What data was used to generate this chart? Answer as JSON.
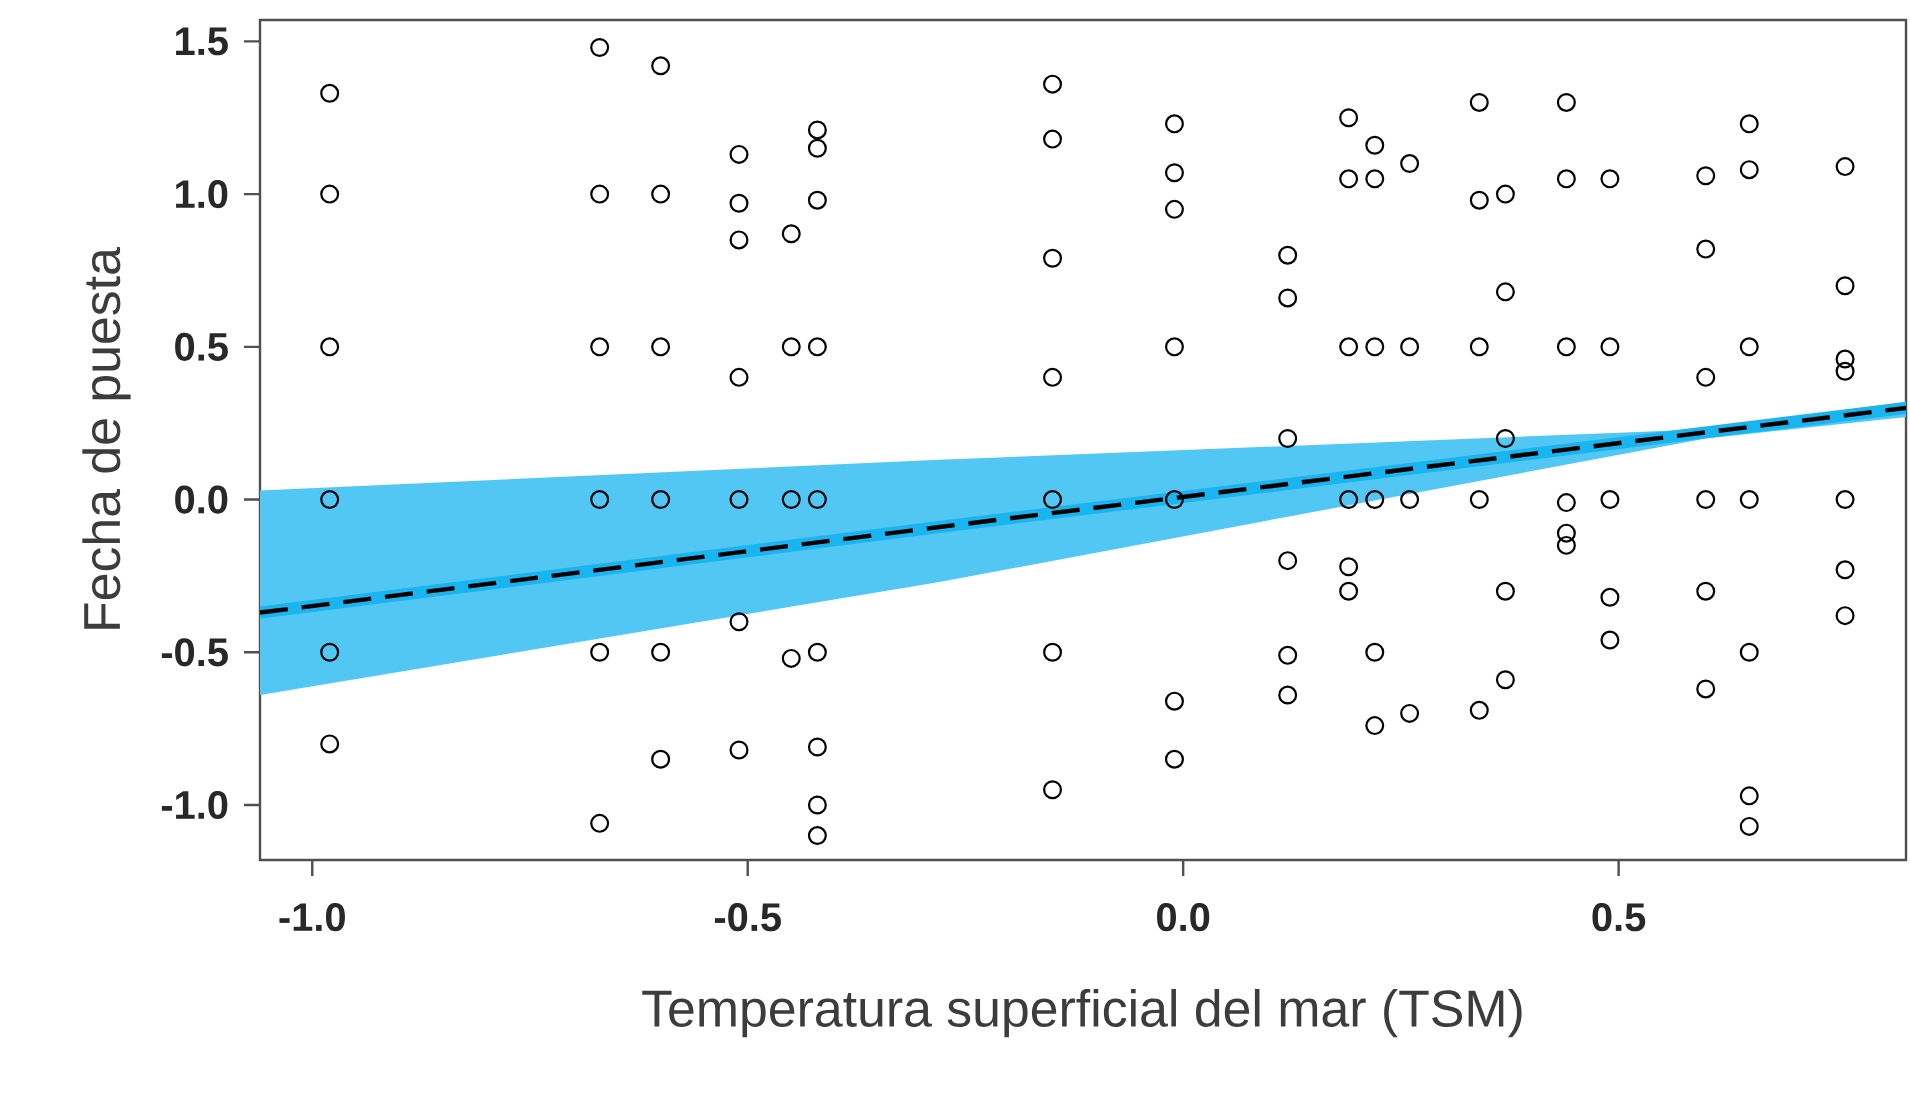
{
  "chart_data": {
    "type": "scatter",
    "xlabel": "Temperatura superficial del mar (TSM)",
    "ylabel": "Fecha de puesta",
    "xlim": [
      -1.06,
      0.83
    ],
    "ylim": [
      -1.18,
      1.57
    ],
    "xticks": [
      {
        "value": -1,
        "label": "-1.0"
      },
      {
        "value": -0.5,
        "label": "-0.5"
      },
      {
        "value": 0,
        "label": "0.0"
      },
      {
        "value": 0.5,
        "label": "0.5"
      }
    ],
    "yticks": [
      {
        "value": -1,
        "label": "-1.0"
      },
      {
        "value": -0.5,
        "label": "-0.5"
      },
      {
        "value": 0,
        "label": "0.0"
      },
      {
        "value": 0.5,
        "label": "0.5"
      },
      {
        "value": 1,
        "label": "1.0"
      },
      {
        "value": 1.5,
        "label": "1.5"
      }
    ],
    "grid": false,
    "series": [
      {
        "type": "scatter",
        "color": "#000000",
        "marker": "circle",
        "x": [
          -0.98,
          -0.98,
          -0.98,
          -0.98,
          -0.98,
          -0.98,
          -0.67,
          -0.67,
          -0.67,
          -0.67,
          -0.67,
          -0.67,
          -0.6,
          -0.6,
          -0.6,
          -0.6,
          -0.6,
          -0.6,
          -0.51,
          -0.51,
          -0.51,
          -0.51,
          -0.51,
          -0.51,
          -0.51,
          -0.45,
          -0.45,
          -0.45,
          -0.45,
          -0.42,
          -0.42,
          -0.42,
          -0.42,
          -0.42,
          -0.42,
          -0.42,
          -0.42,
          -0.42,
          -0.15,
          -0.15,
          -0.15,
          -0.15,
          -0.15,
          -0.15,
          -0.15,
          -0.01,
          -0.01,
          -0.01,
          -0.01,
          -0.01,
          -0.01,
          -0.01,
          0.12,
          0.12,
          0.12,
          0.12,
          0.12,
          0.12,
          0.19,
          0.19,
          0.19,
          0.19,
          0.19,
          0.19,
          0.22,
          0.22,
          0.22,
          0.22,
          0.22,
          0.22,
          0.26,
          0.26,
          0.26,
          0.26,
          0.34,
          0.34,
          0.34,
          0.34,
          0.34,
          0.37,
          0.37,
          0.37,
          0.37,
          0.37,
          0.44,
          0.44,
          0.44,
          0.44,
          0.44,
          0.44,
          0.49,
          0.49,
          0.49,
          0.49,
          0.49,
          0.6,
          0.6,
          0.6,
          0.6,
          0.6,
          0.6,
          0.65,
          0.65,
          0.65,
          0.65,
          0.65,
          0.65,
          0.65,
          0.76,
          0.76,
          0.76,
          0.76,
          0.76,
          0.76,
          0.76
        ],
        "values": [
          1.33,
          1.0,
          0.5,
          0.0,
          -0.5,
          -0.8,
          1.48,
          1.0,
          0.5,
          0.0,
          -0.5,
          -1.06,
          1.42,
          1.0,
          0.5,
          0.0,
          -0.5,
          -0.85,
          1.13,
          0.97,
          0.85,
          0.4,
          0.0,
          -0.4,
          -0.82,
          0.87,
          0.5,
          0.0,
          -0.52,
          1.21,
          1.15,
          0.98,
          0.5,
          0.0,
          -0.5,
          -0.81,
          -1.0,
          -1.1,
          1.36,
          1.18,
          0.79,
          0.4,
          0.0,
          -0.5,
          -0.95,
          1.23,
          1.07,
          0.95,
          0.5,
          0.0,
          -0.66,
          -0.85,
          0.8,
          0.66,
          0.2,
          -0.2,
          -0.51,
          -0.64,
          1.25,
          1.05,
          0.5,
          0.0,
          -0.22,
          -0.3,
          1.16,
          1.05,
          0.5,
          0.0,
          -0.5,
          -0.74,
          1.1,
          0.5,
          0.0,
          -0.7,
          1.3,
          0.98,
          0.5,
          0.0,
          -0.69,
          1.0,
          0.68,
          0.2,
          -0.3,
          -0.59,
          1.3,
          1.05,
          0.5,
          -0.01,
          -0.11,
          -0.15,
          1.05,
          0.5,
          0.0,
          -0.32,
          -0.46,
          1.06,
          0.82,
          0.4,
          0.0,
          -0.3,
          -0.62,
          1.23,
          1.08,
          0.5,
          0.0,
          -0.5,
          -0.97,
          -1.07,
          1.09,
          0.7,
          0.46,
          0.42,
          0.0,
          -0.23,
          -0.38
        ]
      },
      {
        "type": "line",
        "color": "#19b5f0",
        "line_style": "solid",
        "marker": "none",
        "x": [
          -1.06,
          -0.28,
          0.6,
          0.83
        ],
        "values": [
          -0.37,
          -0.09,
          0.22,
          0.3
        ],
        "lower": [
          -0.64,
          -0.27,
          0.2,
          0.27
        ],
        "upper": [
          0.03,
          0.13,
          0.23,
          0.32
        ]
      },
      {
        "type": "line",
        "color": "#000000",
        "line_style": "dashed",
        "marker": "none",
        "x": [
          -1.06,
          -0.28,
          0.6,
          0.83
        ],
        "values": [
          -0.37,
          -0.09,
          0.22,
          0.3
        ]
      }
    ]
  }
}
